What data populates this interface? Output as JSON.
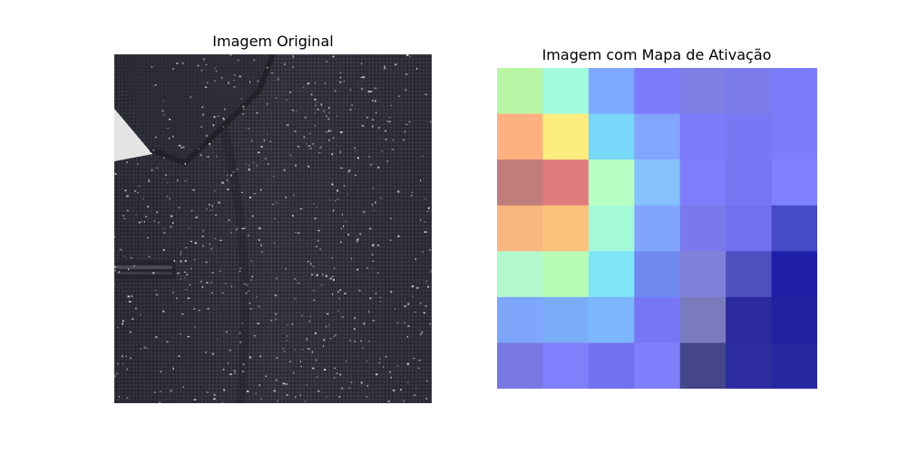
{
  "figure": {
    "left_title": "Imagem Original",
    "right_title": "Imagem com Mapa de Ativação"
  },
  "photo": {
    "subject": "close-up of dark grey speckled tweed jacket with lapel and welt pocket",
    "fabric_color": "#34343f",
    "fleck_color": "#d9d9e2"
  },
  "chart_data": {
    "type": "heatmap",
    "title": "Imagem com Mapa de Ativação",
    "rows": 7,
    "cols": 7,
    "grid": false,
    "colors": [
      [
        "#bbf5a6",
        "#a2fbdd",
        "#7ea8fc",
        "#7c7bfc",
        "#7f7fe5",
        "#7b7bec",
        "#7c7cfb"
      ],
      [
        "#fdb080",
        "#fdec7e",
        "#77d7f8",
        "#82a5fd",
        "#7c7cfb",
        "#7878f5",
        "#7d7dfc"
      ],
      [
        "#c17c7c",
        "#e17c7d",
        "#b6fec2",
        "#84c1fd",
        "#7e7efd",
        "#7676f3",
        "#7e80fd"
      ],
      [
        "#f9b67f",
        "#fec27f",
        "#a4fad7",
        "#82a5fc",
        "#7979ec",
        "#7070f0",
        "#454ac9"
      ],
      [
        "#b1f9cc",
        "#b9fcb6",
        "#7fe5f9",
        "#6e89ef",
        "#8181d9",
        "#4f50c0",
        "#1e1ea8"
      ],
      [
        "#7ea6fa",
        "#7aadf8",
        "#7cb6fc",
        "#7777f6",
        "#7a7abf",
        "#2a2a9e",
        "#2222a1"
      ],
      [
        "#7878e2",
        "#7f80fb",
        "#7171f1",
        "#7f7ffb",
        "#45458b",
        "#2d2da0",
        "#2626a1"
      ]
    ]
  }
}
